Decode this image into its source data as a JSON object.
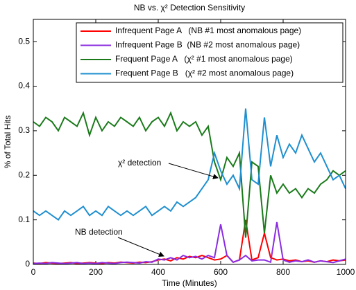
{
  "chart_data": {
    "type": "line",
    "title": "NB vs. χ² Detection Sensitivity",
    "xlabel": "Time (Minutes)",
    "ylabel": "% of Total Hits",
    "x": [
      0,
      20,
      40,
      60,
      80,
      100,
      120,
      140,
      160,
      180,
      200,
      220,
      240,
      260,
      280,
      300,
      320,
      340,
      360,
      380,
      400,
      420,
      440,
      460,
      480,
      500,
      520,
      540,
      560,
      580,
      600,
      620,
      640,
      660,
      680,
      700,
      720,
      740,
      760,
      780,
      800,
      820,
      840,
      860,
      880,
      900,
      920,
      940,
      960,
      980,
      1000
    ],
    "xlim": [
      0,
      1000
    ],
    "xticks": [
      0,
      200,
      400,
      600,
      800,
      1000
    ],
    "ylim": [
      0,
      0.55
    ],
    "yticks": [
      0,
      0.1,
      0.2,
      0.3,
      0.4,
      0.5
    ],
    "legend": "upper right",
    "series": [
      {
        "name": "Infrequent Page A   (NB #1 most anomalous page)",
        "color": "#ff0000",
        "values": [
          0.003,
          0.002,
          0.004,
          0.003,
          0.002,
          0.003,
          0.004,
          0.002,
          0.003,
          0.004,
          0.003,
          0.002,
          0.004,
          0.003,
          0.005,
          0.004,
          0.003,
          0.005,
          0.004,
          0.006,
          0.01,
          0.012,
          0.008,
          0.015,
          0.012,
          0.018,
          0.015,
          0.02,
          0.015,
          0.01,
          0.012,
          0.02,
          0.005,
          0.01,
          0.1,
          0.01,
          0.015,
          0.07,
          0.015,
          0.01,
          0.012,
          0.008,
          0.01,
          0.006,
          0.008,
          0.005,
          0.008,
          0.006,
          0.01,
          0.008,
          0.01
        ]
      },
      {
        "name": "Infrequent Page B  (NB #2 most anomalous page)",
        "color": "#8a2be2",
        "values": [
          0.002,
          0.003,
          0.002,
          0.004,
          0.003,
          0.002,
          0.003,
          0.004,
          0.002,
          0.003,
          0.002,
          0.004,
          0.003,
          0.002,
          0.004,
          0.005,
          0.004,
          0.003,
          0.006,
          0.005,
          0.012,
          0.01,
          0.015,
          0.01,
          0.02,
          0.015,
          0.018,
          0.012,
          0.02,
          0.015,
          0.09,
          0.02,
          0.005,
          0.01,
          0.02,
          0.008,
          0.01,
          0.01,
          0.005,
          0.095,
          0.01,
          0.005,
          0.008,
          0.006,
          0.01,
          0.005,
          0.008,
          0.006,
          0.004,
          0.008,
          0.012
        ]
      },
      {
        "name": "Frequent Page A   (χ² #1 most anomalous page)",
        "color": "#1a7a1a",
        "values": [
          0.32,
          0.31,
          0.33,
          0.32,
          0.3,
          0.33,
          0.32,
          0.31,
          0.34,
          0.29,
          0.33,
          0.3,
          0.32,
          0.31,
          0.33,
          0.32,
          0.31,
          0.33,
          0.3,
          0.32,
          0.33,
          0.31,
          0.34,
          0.3,
          0.32,
          0.31,
          0.32,
          0.29,
          0.31,
          0.23,
          0.19,
          0.24,
          0.22,
          0.25,
          0.06,
          0.23,
          0.22,
          0.07,
          0.2,
          0.16,
          0.18,
          0.16,
          0.17,
          0.15,
          0.17,
          0.16,
          0.18,
          0.19,
          0.21,
          0.2,
          0.21
        ]
      },
      {
        "name": "Frequent Page B   (χ² #2 most anomalous page)",
        "color": "#1f8fcf",
        "values": [
          0.12,
          0.11,
          0.12,
          0.11,
          0.1,
          0.12,
          0.11,
          0.12,
          0.13,
          0.11,
          0.12,
          0.11,
          0.13,
          0.12,
          0.11,
          0.12,
          0.11,
          0.12,
          0.13,
          0.11,
          0.12,
          0.13,
          0.12,
          0.14,
          0.13,
          0.14,
          0.15,
          0.17,
          0.19,
          0.25,
          0.21,
          0.18,
          0.2,
          0.17,
          0.35,
          0.19,
          0.18,
          0.33,
          0.22,
          0.29,
          0.24,
          0.27,
          0.25,
          0.29,
          0.26,
          0.23,
          0.25,
          0.22,
          0.19,
          0.2,
          0.17
        ]
      }
    ],
    "annotations": [
      "χ² detection",
      "NB detection"
    ]
  }
}
